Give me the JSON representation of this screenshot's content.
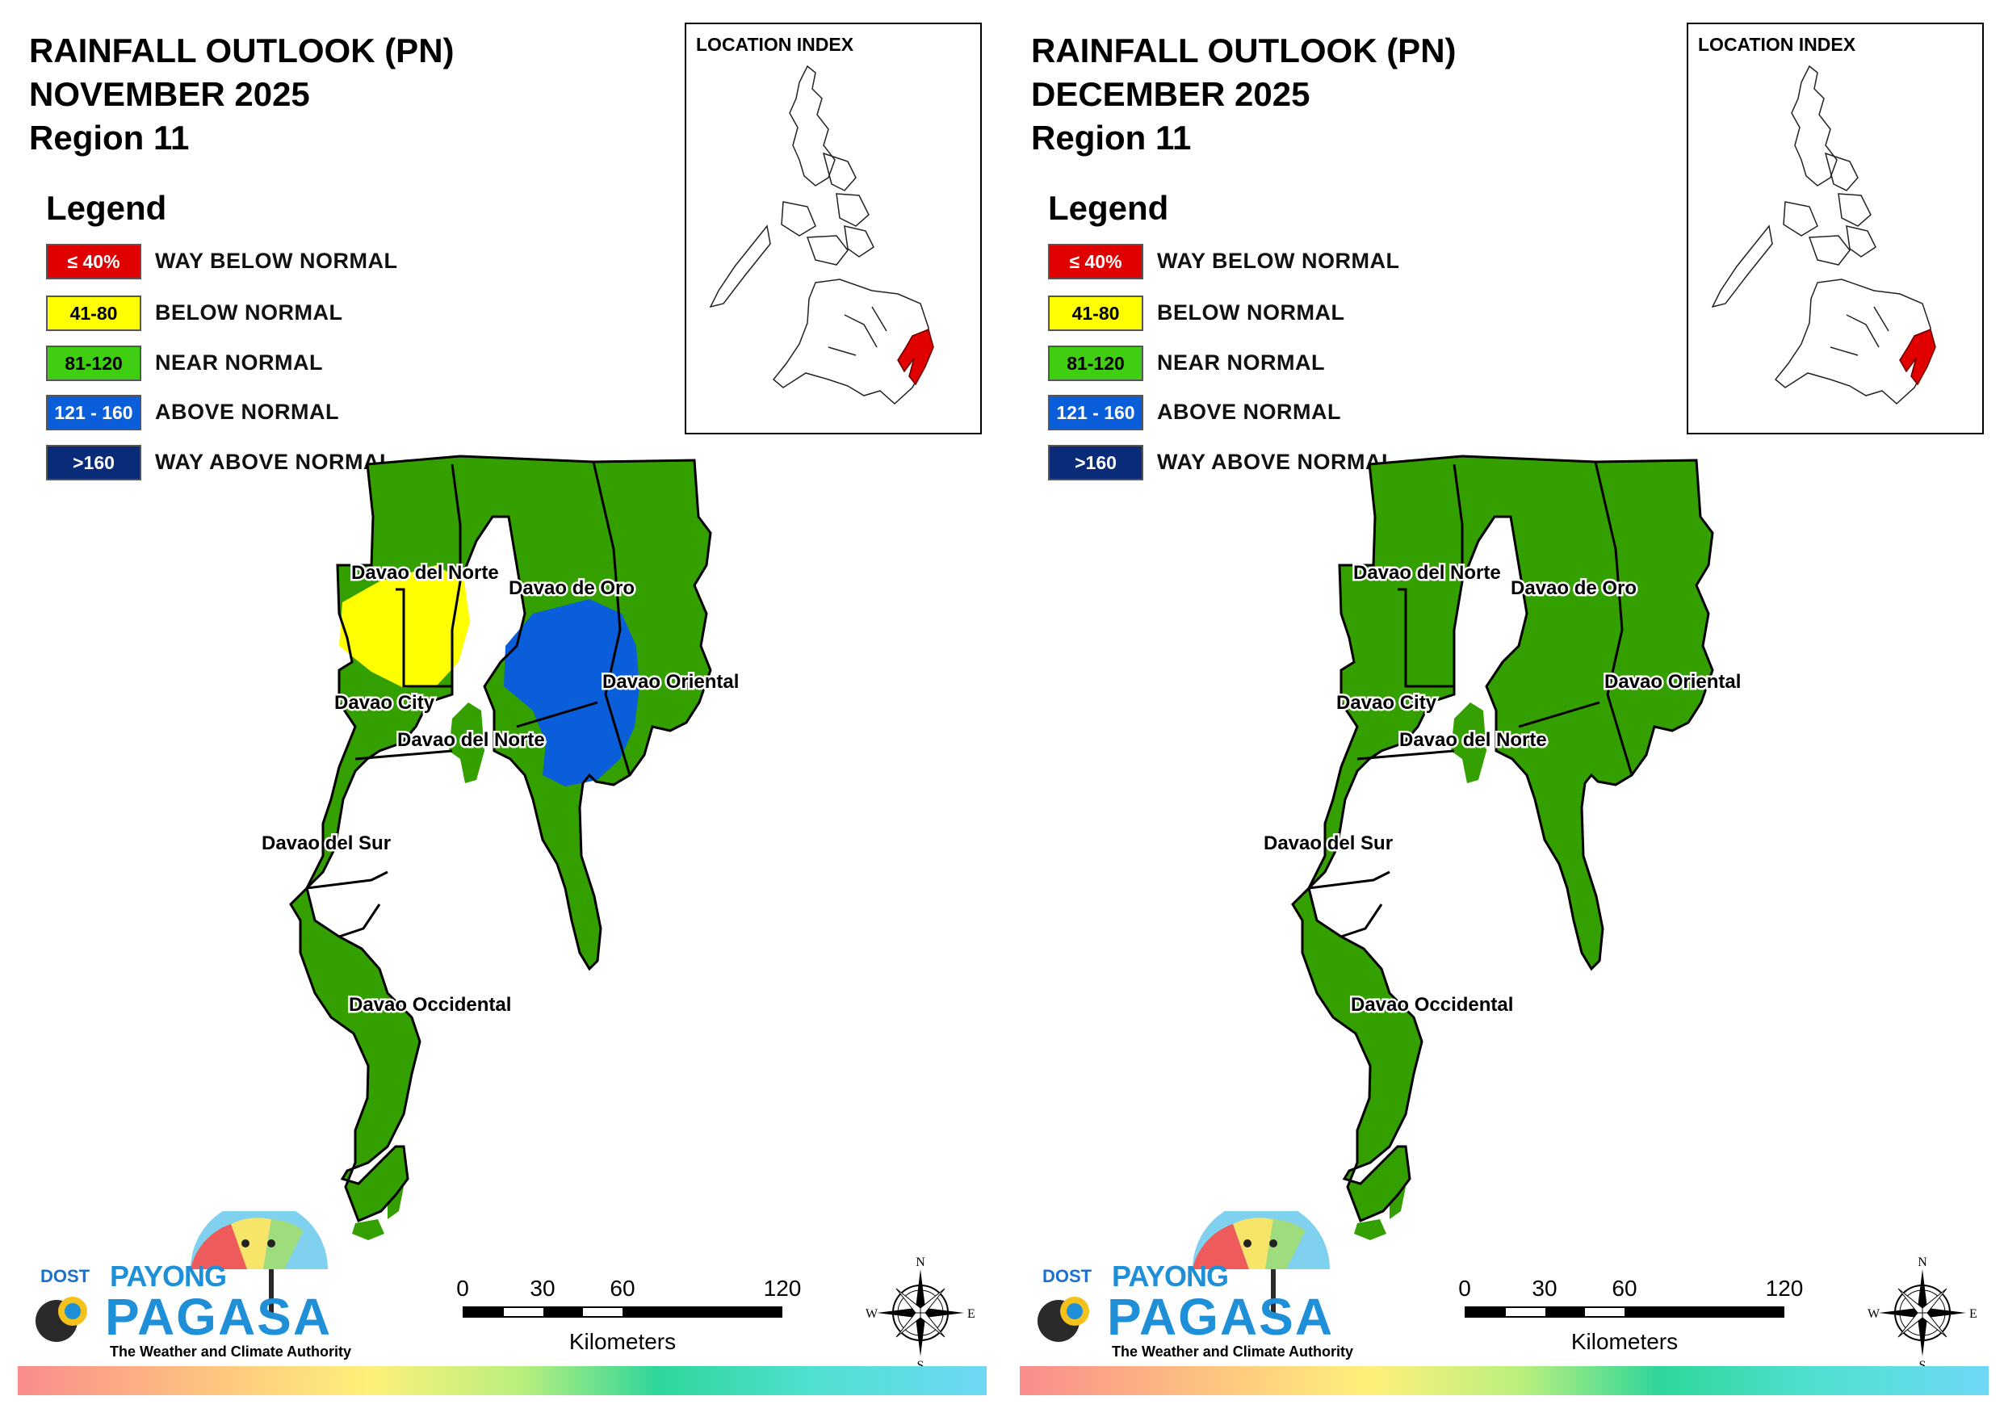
{
  "panels": [
    {
      "title_line1": "RAINFALL OUTLOOK (PN)",
      "title_line2": "NOVEMBER 2025",
      "title_line3": "Region 11",
      "anomaly_overlays": [
        {
          "category": "below-normal",
          "color": "#ffff00"
        },
        {
          "category": "above-normal",
          "color": "#0b5ed9"
        }
      ]
    },
    {
      "title_line1": "RAINFALL OUTLOOK (PN)",
      "title_line2": "DECEMBER 2025",
      "title_line3": "Region 11",
      "anomaly_overlays": []
    }
  ],
  "legend": {
    "heading": "Legend",
    "items": [
      {
        "range": "≤ 40%",
        "label": "WAY BELOW NORMAL",
        "color": "#e00000",
        "text_color": "#ffffff"
      },
      {
        "range": "41-80",
        "label": "BELOW NORMAL",
        "color": "#ffff00",
        "text_color": "#000000"
      },
      {
        "range": "81-120",
        "label": "NEAR NORMAL",
        "color": "#3fce12",
        "text_color": "#000000"
      },
      {
        "range": "121 - 160",
        "label": "ABOVE NORMAL",
        "color": "#0b5ed9",
        "text_color": "#ffffff"
      },
      {
        "range": ">160",
        "label": "WAY ABOVE NORMAL",
        "color": "#0a2c78",
        "text_color": "#ffffff"
      }
    ]
  },
  "inset": {
    "label": "LOCATION INDEX",
    "highlight_color": "#e00000"
  },
  "map": {
    "base_color": "#33a000",
    "boundary_color": "#000000",
    "province_labels": {
      "davao_del_norte_top": "Davao del Norte",
      "davao_de_oro": "Davao de Oro",
      "davao_oriental": "Davao Oriental",
      "davao_city": "Davao City",
      "davao_del_norte_mid": "Davao del Norte",
      "davao_del_sur": "Davao del Sur",
      "davao_occidental": "Davao Occidental"
    }
  },
  "scale_bar": {
    "ticks": [
      "0",
      "30",
      "60",
      "120"
    ],
    "unit": "Kilometers"
  },
  "compass": {
    "n": "N",
    "s": "S",
    "e": "E",
    "w": "W"
  },
  "logo": {
    "dost": "DOST",
    "payong": "PAYONG",
    "pagasa": "PAGASA",
    "tagline": "The Weather and Climate Authority"
  }
}
